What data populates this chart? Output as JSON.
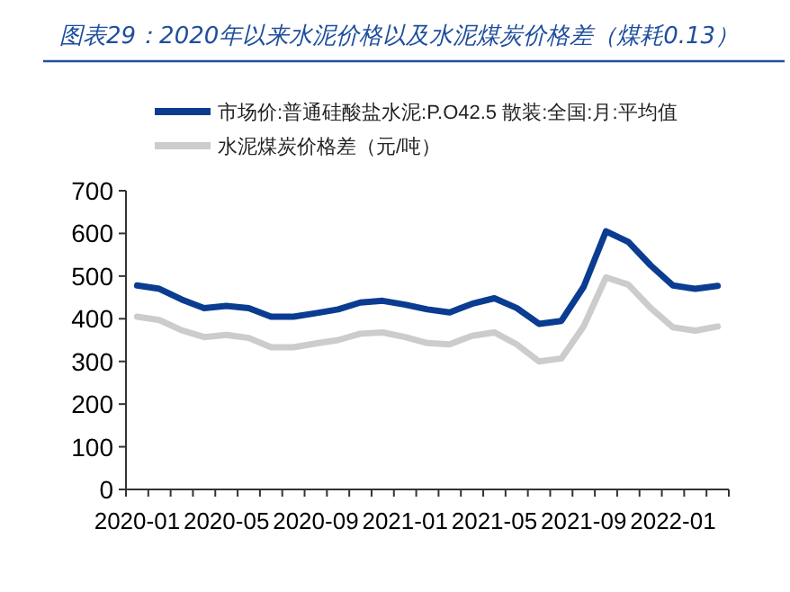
{
  "chart_data": {
    "type": "line",
    "title": "图表29：2020年以来水泥价格以及水泥煤炭价格差（煤耗0.13）",
    "categories": [
      "2020-01",
      null,
      null,
      null,
      "2020-05",
      null,
      null,
      null,
      "2020-09",
      null,
      null,
      null,
      "2021-01",
      null,
      null,
      null,
      "2021-05",
      null,
      null,
      null,
      "2021-09",
      null,
      null,
      null,
      "2022-01",
      null,
      null
    ],
    "series": [
      {
        "name": "市场价:普通硅酸盐水泥:P.O42.5 散装:全国:月:平均值",
        "color": "#0a3d91",
        "values": [
          478,
          470,
          445,
          425,
          430,
          425,
          405,
          405,
          413,
          422,
          438,
          442,
          433,
          422,
          415,
          435,
          448,
          425,
          388,
          395,
          475,
          605,
          580,
          525,
          478,
          470,
          477
        ]
      },
      {
        "name": "水泥煤炭价格差（元/吨）",
        "color": "#cccccc",
        "values": [
          405,
          397,
          373,
          357,
          362,
          355,
          333,
          333,
          342,
          350,
          365,
          368,
          357,
          343,
          340,
          360,
          368,
          340,
          300,
          307,
          382,
          497,
          480,
          425,
          380,
          372,
          382
        ]
      }
    ],
    "ylim": [
      0,
      700
    ],
    "yticks": [
      0,
      100,
      200,
      300,
      400,
      500,
      600,
      700
    ],
    "grid": false,
    "legend": "top",
    "marker": "none",
    "line_style": "solid"
  }
}
